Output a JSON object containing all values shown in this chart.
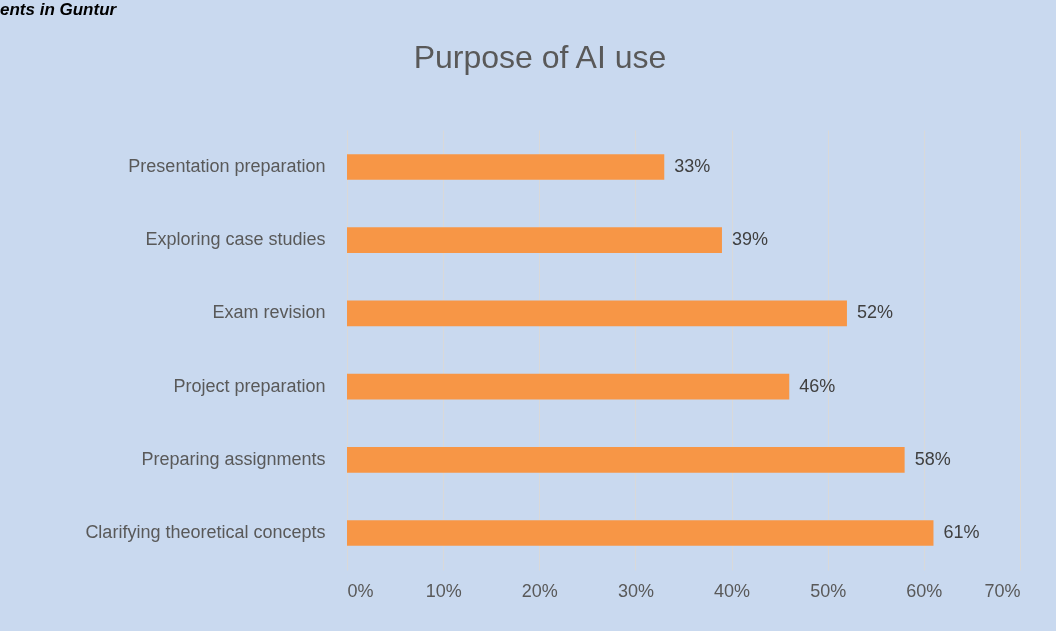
{
  "chart_data": {
    "type": "bar",
    "orientation": "horizontal",
    "title": "Purpose of AI use",
    "annotations": [
      "ents in Guntur"
    ],
    "categories": [
      "Presentation preparation",
      "Exploring case studies",
      "Exam revision",
      "Project preparation",
      "Preparing assignments",
      "Clarifying theoretical concepts"
    ],
    "values": [
      33,
      39,
      52,
      46,
      58,
      61
    ],
    "value_labels": [
      "33%",
      "39%",
      "52%",
      "46%",
      "58%",
      "61%"
    ],
    "color": "#f79646",
    "xlim": [
      0,
      70
    ],
    "xticks": [
      {
        "value": 0,
        "label": "0%"
      },
      {
        "value": 10,
        "label": "10%"
      },
      {
        "value": 20,
        "label": "20%"
      },
      {
        "value": 30,
        "label": "30%"
      },
      {
        "value": 40,
        "label": "40%"
      },
      {
        "value": 50,
        "label": "50%"
      },
      {
        "value": 60,
        "label": "60%"
      },
      {
        "value": 70,
        "label": "70%"
      }
    ],
    "grid": "x"
  }
}
